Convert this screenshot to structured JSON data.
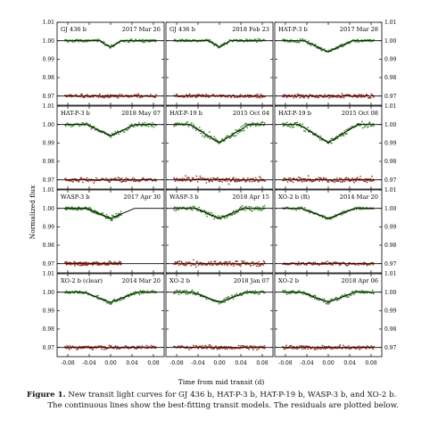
{
  "figure": {
    "ylabel": "Normalized flux",
    "xlabel": "Time from mid transit (d)",
    "yticks": [
      "1.01",
      "1.00",
      "0.99",
      "0.98",
      "0.97"
    ],
    "xticks": [
      "-0.08",
      "-0.04",
      "0.00",
      "0.04",
      "0.08"
    ],
    "caption_label": "Figure 1.",
    "caption_line1": "New transit light curves for GJ 436 b, HAT-P-3 b, HAT-P-19 b, WASP-3 b, and XO-2 b.",
    "caption_line2": "The continuous lines show the best-fitting transit models. The residuals are plotted below.",
    "colors": {
      "data": "#3e8b2e",
      "residual": "#a3352a",
      "model": "#000000"
    }
  },
  "chart_data": [
    {
      "type": "scatter",
      "planet": "GJ 436 b",
      "date": "2017 Mar 26",
      "depth": 0.0065,
      "t1": -0.02,
      "t2": -0.011,
      "t3": 0.011,
      "t4": 0.02,
      "noise": 0.0007,
      "xlim": [
        -0.1,
        0.1
      ],
      "ylim": [
        0.965,
        1.01
      ],
      "residual_offset": 0.97
    },
    {
      "type": "scatter",
      "planet": "GJ 436 b",
      "date": "2018 Feb 23",
      "depth": 0.0065,
      "t1": -0.02,
      "t2": -0.011,
      "t3": 0.011,
      "t4": 0.02,
      "noise": 0.0007,
      "xlim": [
        -0.1,
        0.1
      ],
      "ylim": [
        0.965,
        1.01
      ],
      "residual_offset": 0.97
    },
    {
      "type": "scatter",
      "planet": "HAT-P-3 b",
      "date": "2017 Mar 28",
      "depth": 0.012,
      "t1": -0.045,
      "t2": -0.03,
      "t3": 0.03,
      "t4": 0.045,
      "noise": 0.0008,
      "xlim": [
        -0.1,
        0.1
      ],
      "ylim": [
        0.965,
        1.01
      ],
      "residual_offset": 0.97
    },
    {
      "type": "scatter",
      "planet": "HAT-P-3 b",
      "date": "2018 May 07",
      "depth": 0.012,
      "t1": -0.045,
      "t2": -0.03,
      "t3": 0.03,
      "t4": 0.045,
      "noise": 0.0009,
      "xlim": [
        -0.1,
        0.1
      ],
      "ylim": [
        0.965,
        1.01
      ],
      "residual_offset": 0.97
    },
    {
      "type": "scatter",
      "planet": "HAT-P-19 b",
      "date": "2015 Oct 04",
      "depth": 0.02,
      "t1": -0.055,
      "t2": -0.04,
      "t3": 0.04,
      "t4": 0.055,
      "noise": 0.0013,
      "xlim": [
        -0.1,
        0.1
      ],
      "ylim": [
        0.965,
        1.01
      ],
      "residual_offset": 0.97
    },
    {
      "type": "scatter",
      "planet": "HAT-P-19 b",
      "date": "2015 Oct 08",
      "depth": 0.02,
      "t1": -0.055,
      "t2": -0.04,
      "t3": 0.04,
      "t4": 0.055,
      "noise": 0.0012,
      "xlim": [
        -0.1,
        0.1
      ],
      "ylim": [
        0.965,
        1.01
      ],
      "residual_offset": 0.97
    },
    {
      "type": "scatter",
      "planet": "WASP-3 b",
      "date": "2017 Apr 30",
      "depth": 0.011,
      "t1": -0.045,
      "t2": -0.032,
      "t3": 0.032,
      "t4": 0.045,
      "noise": 0.0009,
      "xlim": [
        -0.1,
        0.1
      ],
      "ylim": [
        0.965,
        1.01
      ],
      "residual_offset": 0.97,
      "data_xmax": 0.02
    },
    {
      "type": "scatter",
      "planet": "WASP-3 b",
      "date": "2018 Apr 15",
      "depth": 0.011,
      "t1": -0.045,
      "t2": -0.032,
      "t3": 0.032,
      "t4": 0.045,
      "noise": 0.0011,
      "xlim": [
        -0.1,
        0.1
      ],
      "ylim": [
        0.965,
        1.01
      ],
      "residual_offset": 0.97
    },
    {
      "type": "scatter",
      "planet": "XO-2 b (R)",
      "date": "2014 Mar 20",
      "depth": 0.011,
      "t1": -0.05,
      "t2": -0.035,
      "t3": 0.035,
      "t4": 0.05,
      "noise": 0.0007,
      "xlim": [
        -0.1,
        0.1
      ],
      "ylim": [
        0.965,
        1.01
      ],
      "residual_offset": 0.97
    },
    {
      "type": "scatter",
      "planet": "XO-2 b (clear)",
      "date": "2014 Mar 20",
      "depth": 0.011,
      "t1": -0.05,
      "t2": -0.035,
      "t3": 0.035,
      "t4": 0.05,
      "noise": 0.0008,
      "xlim": [
        -0.1,
        0.1
      ],
      "ylim": [
        0.965,
        1.01
      ],
      "residual_offset": 0.97
    },
    {
      "type": "scatter",
      "planet": "XO-2 b",
      "date": "2018 Jan 07",
      "depth": 0.011,
      "t1": -0.05,
      "t2": -0.035,
      "t3": 0.035,
      "t4": 0.05,
      "noise": 0.0009,
      "xlim": [
        -0.1,
        0.1
      ],
      "ylim": [
        0.965,
        1.01
      ],
      "residual_offset": 0.97
    },
    {
      "type": "scatter",
      "planet": "XO-2 b",
      "date": "2018 Apr 06",
      "depth": 0.011,
      "t1": -0.05,
      "t2": -0.035,
      "t3": 0.035,
      "t4": 0.05,
      "noise": 0.0009,
      "xlim": [
        -0.1,
        0.1
      ],
      "ylim": [
        0.965,
        1.01
      ],
      "residual_offset": 0.97
    }
  ]
}
